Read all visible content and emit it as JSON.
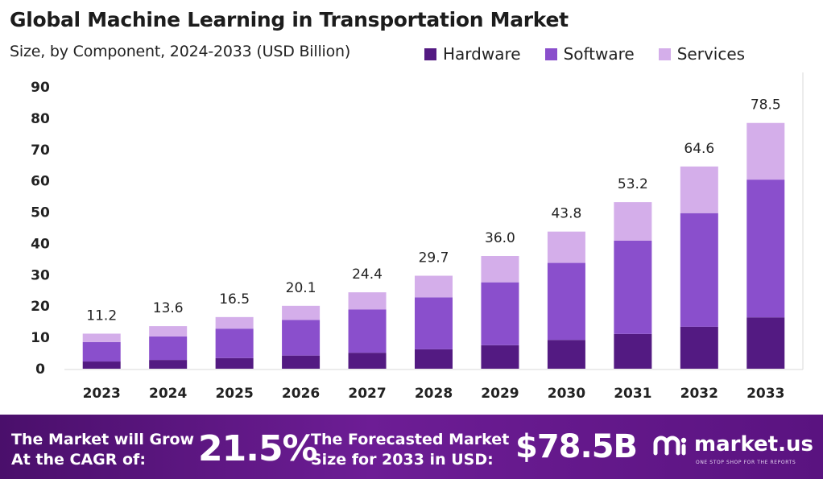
{
  "title": "Global Machine Learning in Transportation Market",
  "subtitle": "Size, by Component, 2024-2033 (USD Billion)",
  "colors": {
    "hardware": "#531a82",
    "software": "#8a4fcc",
    "services": "#d4aeea"
  },
  "chart_data": {
    "type": "bar",
    "stacked": true,
    "categories": [
      "2023",
      "2024",
      "2025",
      "2026",
      "2027",
      "2028",
      "2029",
      "2030",
      "2031",
      "2032",
      "2033"
    ],
    "series": [
      {
        "name": "Hardware",
        "values": [
          2.3,
          2.8,
          3.4,
          4.2,
          5.1,
          6.2,
          7.5,
          9.2,
          11.1,
          13.4,
          16.4
        ]
      },
      {
        "name": "Software",
        "values": [
          6.2,
          7.5,
          9.4,
          11.4,
          13.8,
          16.6,
          20.1,
          24.6,
          29.8,
          36.3,
          44.0
        ]
      },
      {
        "name": "Services",
        "values": [
          2.7,
          3.3,
          3.7,
          4.5,
          5.5,
          6.9,
          8.4,
          10.0,
          12.3,
          14.9,
          18.1
        ]
      }
    ],
    "totals": [
      "11.2",
      "13.6",
      "16.5",
      "20.1",
      "24.4",
      "29.7",
      "36.0",
      "43.8",
      "53.2",
      "64.6",
      "78.5"
    ],
    "yticks": [
      "0",
      "10",
      "20",
      "30",
      "40",
      "50",
      "60",
      "70",
      "80",
      "90"
    ],
    "ylim": [
      0,
      90
    ],
    "legend_position": "top-right",
    "grid": false
  },
  "footer": {
    "grow_line1": "The Market will Grow",
    "grow_line2": "At the CAGR of:",
    "cagr": "21.5%",
    "forecast_line1": "The Forecasted Market",
    "forecast_line2": "Size for 2033 in USD:",
    "forecast_value": "$78.5B",
    "brand": "market.us",
    "tagline": "ONE STOP SHOP FOR THE REPORTS"
  }
}
